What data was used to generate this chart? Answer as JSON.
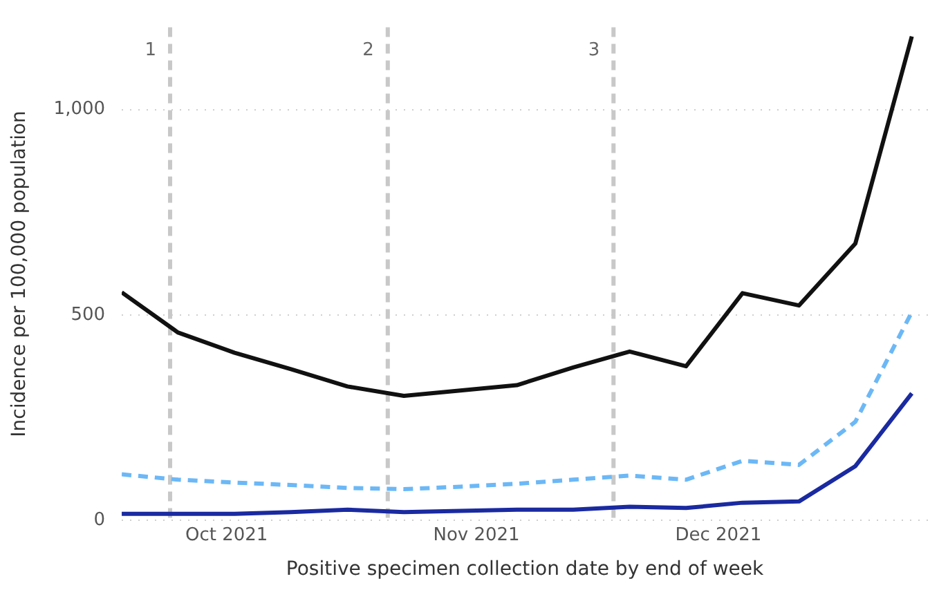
{
  "chart_data": {
    "type": "line",
    "xlabel": "Positive specimen collection date by end of week",
    "ylabel": "Incidence per 100,000 population",
    "x": [
      "2021-09-18",
      "2021-09-25",
      "2021-10-02",
      "2021-10-09",
      "2021-10-16",
      "2021-10-23",
      "2021-10-30",
      "2021-11-06",
      "2021-11-13",
      "2021-11-20",
      "2021-11-27",
      "2021-12-04",
      "2021-12-11",
      "2021-12-18",
      "2021-12-25"
    ],
    "series": [
      {
        "color": "#111111",
        "line_style": "solid",
        "values": [
          555,
          457,
          408,
          368,
          326,
          303,
          316,
          329,
          372,
          411,
          375,
          553,
          523,
          674,
          1178
        ]
      },
      {
        "color": "#6cb8f6",
        "line_style": "dashed",
        "values": [
          112,
          99,
          92,
          86,
          79,
          76,
          82,
          89,
          99,
          109,
          99,
          145,
          135,
          240,
          507
        ]
      },
      {
        "color": "#1a2aa0",
        "line_style": "solid",
        "values": [
          16,
          16,
          16,
          20,
          26,
          20,
          23,
          26,
          26,
          33,
          30,
          43,
          46,
          132,
          309
        ]
      }
    ],
    "xlim": [
      "2021-09-18",
      "2021-12-27"
    ],
    "xticks": [
      {
        "value": "2021-10-01",
        "label": "Oct 2021"
      },
      {
        "value": "2021-11-01",
        "label": "Nov 2021"
      },
      {
        "value": "2021-12-01",
        "label": "Dec 2021"
      }
    ],
    "ylim": [
      0,
      1200
    ],
    "yticks": [
      0,
      500,
      {
        "value": 1000,
        "label": "1,000"
      }
    ],
    "grid": "y",
    "legend": false,
    "marker": "none",
    "ref_lines": [
      {
        "axis": "x",
        "value": "2021-09-24",
        "label": "1",
        "color": "#c8c8c8",
        "line_style": "dashed"
      },
      {
        "axis": "x",
        "value": "2021-10-21",
        "label": "2",
        "color": "#c8c8c8",
        "line_style": "dashed"
      },
      {
        "axis": "x",
        "value": "2021-11-18",
        "label": "3",
        "color": "#c8c8c8",
        "line_style": "dashed"
      }
    ]
  }
}
